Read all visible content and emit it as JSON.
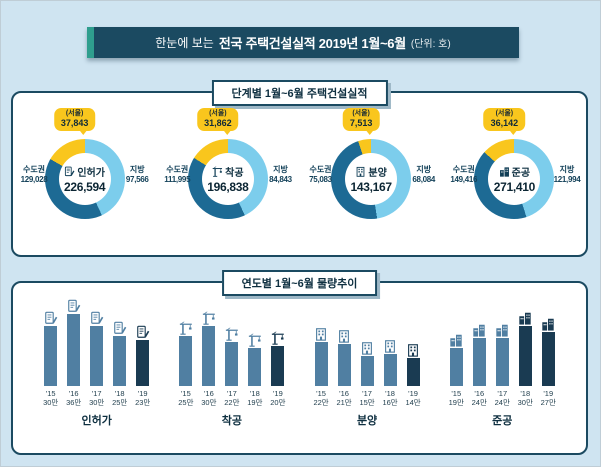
{
  "colors": {
    "background": "#cfe4f1",
    "navy": "#123f57",
    "ribbon_navy": "#1b4a61",
    "ribbon_green": "#2f9e8e",
    "metro_blue": "#1d6a94",
    "region_blue": "#7ccdec",
    "seoul_yellow": "#f9c61d",
    "bar_blue": "#507fa2",
    "bar_dark": "#1a3b52"
  },
  "header": {
    "prefix": "한눈에 보는",
    "title": "전국 주택건설실적 2019년 1월~6월",
    "unit": "(단위: 호)"
  },
  "stage_panel": {
    "title": "단계별 1월~6월 주택건설실적",
    "charts": [
      {
        "name": "인허가",
        "icon": "permit-icon",
        "total": "226,594",
        "metro_label": "수도권",
        "metro": "129,028",
        "metro_value": 129028,
        "region_label": "지방",
        "region": "97,566",
        "region_value": 97566,
        "seoul_label": "(서울)",
        "seoul": "37,843",
        "seoul_value": 37843
      },
      {
        "name": "착공",
        "icon": "crane-icon",
        "total": "196,838",
        "metro_label": "수도권",
        "metro": "111,995",
        "metro_value": 111995,
        "region_label": "지방",
        "region": "84,843",
        "region_value": 84843,
        "seoul_label": "(서울)",
        "seoul": "31,862",
        "seoul_value": 31862
      },
      {
        "name": "분양",
        "icon": "building-icon",
        "total": "143,167",
        "metro_label": "수도권",
        "metro": "75,083",
        "metro_value": 75083,
        "region_label": "지방",
        "region": "68,084",
        "region_value": 68084,
        "seoul_label": "(서울)",
        "seoul": "7,513",
        "seoul_value": 7513
      },
      {
        "name": "준공",
        "icon": "completion-icon",
        "total": "271,410",
        "metro_label": "수도권",
        "metro": "149,416",
        "metro_value": 149416,
        "region_label": "지방",
        "region": "121,994",
        "region_value": 121994,
        "seoul_label": "(서울)",
        "seoul": "36,142",
        "seoul_value": 36142
      }
    ]
  },
  "trend_panel": {
    "title": "연도별 1월~6월 물량추이",
    "max_value": 36,
    "groups": [
      {
        "name": "인허가",
        "icon": "permit-icon",
        "bars": [
          {
            "year": "'15",
            "label": "30만",
            "value": 30,
            "dark": false
          },
          {
            "year": "'16",
            "label": "36만",
            "value": 36,
            "dark": false
          },
          {
            "year": "'17",
            "label": "30만",
            "value": 30,
            "dark": false
          },
          {
            "year": "'18",
            "label": "25만",
            "value": 25,
            "dark": false
          },
          {
            "year": "'19",
            "label": "23만",
            "value": 23,
            "dark": true
          }
        ]
      },
      {
        "name": "착공",
        "icon": "crane-icon",
        "bars": [
          {
            "year": "'15",
            "label": "25만",
            "value": 25,
            "dark": false
          },
          {
            "year": "'16",
            "label": "30만",
            "value": 30,
            "dark": false
          },
          {
            "year": "'17",
            "label": "22만",
            "value": 22,
            "dark": false
          },
          {
            "year": "'18",
            "label": "19만",
            "value": 19,
            "dark": false
          },
          {
            "year": "'19",
            "label": "20만",
            "value": 20,
            "dark": true
          }
        ]
      },
      {
        "name": "분양",
        "icon": "building-icon",
        "bars": [
          {
            "year": "'15",
            "label": "22만",
            "value": 22,
            "dark": false
          },
          {
            "year": "'16",
            "label": "21만",
            "value": 21,
            "dark": false
          },
          {
            "year": "'17",
            "label": "15만",
            "value": 15,
            "dark": false
          },
          {
            "year": "'18",
            "label": "16만",
            "value": 16,
            "dark": false
          },
          {
            "year": "'19",
            "label": "14만",
            "value": 14,
            "dark": true
          }
        ]
      },
      {
        "name": "준공",
        "icon": "completion-icon",
        "bars": [
          {
            "year": "'15",
            "label": "19만",
            "value": 19,
            "dark": false
          },
          {
            "year": "'16",
            "label": "24만",
            "value": 24,
            "dark": false
          },
          {
            "year": "'17",
            "label": "24만",
            "value": 24,
            "dark": false
          },
          {
            "year": "'18",
            "label": "30만",
            "value": 30,
            "dark": true
          },
          {
            "year": "'19",
            "label": "27만",
            "value": 27,
            "dark": true
          }
        ]
      }
    ]
  },
  "chart_data": [
    {
      "type": "pie",
      "title": "단계별 1월~6월 주택건설실적 - 인허가",
      "labels": [
        "수도권",
        "지방"
      ],
      "values": [
        129028,
        97566
      ],
      "total": 226594,
      "callout": {
        "label": "서울",
        "value": 37843
      },
      "unit": "호"
    },
    {
      "type": "pie",
      "title": "단계별 1월~6월 주택건설실적 - 착공",
      "labels": [
        "수도권",
        "지방"
      ],
      "values": [
        111995,
        84843
      ],
      "total": 196838,
      "callout": {
        "label": "서울",
        "value": 31862
      },
      "unit": "호"
    },
    {
      "type": "pie",
      "title": "단계별 1월~6월 주택건설실적 - 분양",
      "labels": [
        "수도권",
        "지방"
      ],
      "values": [
        75083,
        68084
      ],
      "total": 143167,
      "callout": {
        "label": "서울",
        "value": 7513
      },
      "unit": "호"
    },
    {
      "type": "pie",
      "title": "단계별 1월~6월 주택건설실적 - 준공",
      "labels": [
        "수도권",
        "지방"
      ],
      "values": [
        149416,
        121994
      ],
      "total": 271410,
      "callout": {
        "label": "서울",
        "value": 36142
      },
      "unit": "호"
    },
    {
      "type": "bar",
      "title": "연도별 1월~6월 물량추이 - 인허가",
      "categories": [
        "'15",
        "'16",
        "'17",
        "'18",
        "'19"
      ],
      "values": [
        300000,
        360000,
        300000,
        250000,
        230000
      ],
      "value_labels": [
        "30만",
        "36만",
        "30만",
        "25만",
        "23만"
      ],
      "unit": "호"
    },
    {
      "type": "bar",
      "title": "연도별 1월~6월 물량추이 - 착공",
      "categories": [
        "'15",
        "'16",
        "'17",
        "'18",
        "'19"
      ],
      "values": [
        250000,
        300000,
        220000,
        190000,
        200000
      ],
      "value_labels": [
        "25만",
        "30만",
        "22만",
        "19만",
        "20만"
      ],
      "unit": "호"
    },
    {
      "type": "bar",
      "title": "연도별 1월~6월 물량추이 - 분양",
      "categories": [
        "'15",
        "'16",
        "'17",
        "'18",
        "'19"
      ],
      "values": [
        220000,
        210000,
        150000,
        160000,
        140000
      ],
      "value_labels": [
        "22만",
        "21만",
        "15만",
        "16만",
        "14만"
      ],
      "unit": "호"
    },
    {
      "type": "bar",
      "title": "연도별 1월~6월 물량추이 - 준공",
      "categories": [
        "'15",
        "'16",
        "'17",
        "'18",
        "'19"
      ],
      "values": [
        190000,
        240000,
        240000,
        300000,
        270000
      ],
      "value_labels": [
        "19만",
        "24만",
        "24만",
        "30만",
        "27만"
      ],
      "unit": "호"
    }
  ]
}
